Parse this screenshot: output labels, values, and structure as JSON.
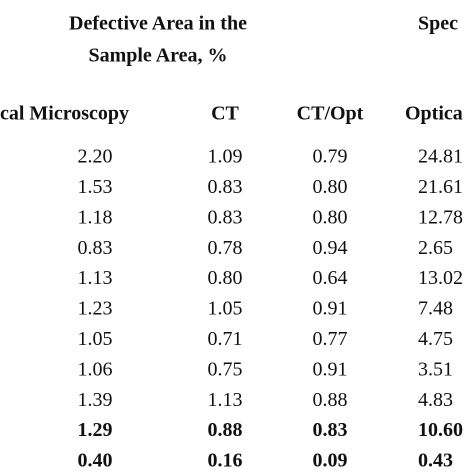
{
  "header": {
    "group_1_line_1": "Defective Area in the",
    "group_1_line_2": "Sample Area, %",
    "group_2": "Spec"
  },
  "columns": [
    "cal Microscopy",
    "CT",
    "CT/Opt",
    "Optica"
  ],
  "rows": [
    {
      "cells": [
        "2.20",
        "1.09",
        "0.79",
        "24.81"
      ],
      "bold": false
    },
    {
      "cells": [
        "1.53",
        "0.83",
        "0.80",
        "21.61"
      ],
      "bold": false
    },
    {
      "cells": [
        "1.18",
        "0.83",
        "0.80",
        "12.78"
      ],
      "bold": false
    },
    {
      "cells": [
        "0.83",
        "0.78",
        "0.94",
        "2.65"
      ],
      "bold": false
    },
    {
      "cells": [
        "1.13",
        "0.80",
        "0.64",
        "13.02"
      ],
      "bold": false
    },
    {
      "cells": [
        "1.23",
        "1.05",
        "0.91",
        "7.48"
      ],
      "bold": false
    },
    {
      "cells": [
        "1.05",
        "0.71",
        "0.77",
        "4.75"
      ],
      "bold": false
    },
    {
      "cells": [
        "1.06",
        "0.75",
        "0.91",
        "3.51"
      ],
      "bold": false
    },
    {
      "cells": [
        "1.39",
        "1.13",
        "0.88",
        "4.83"
      ],
      "bold": false
    },
    {
      "cells": [
        "1.29",
        "0.88",
        "0.83",
        "10.60"
      ],
      "bold": true
    },
    {
      "cells": [
        "0.40",
        "0.16",
        "0.09",
        "0.43"
      ],
      "bold": true
    }
  ]
}
